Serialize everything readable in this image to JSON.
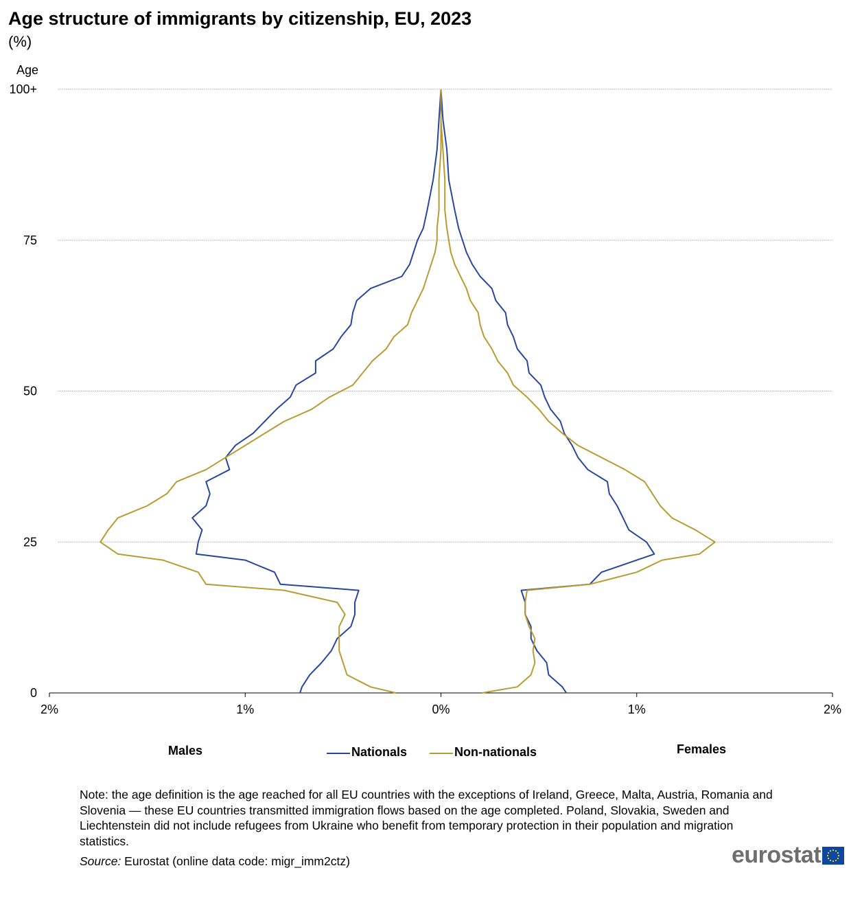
{
  "title": "Age structure of immigrants by citizenship, EU, 2023",
  "subtitle": "(%)",
  "note": "Note: the age definition is the age reached for all EU countries with the exceptions of Ireland, Greece, Malta, Austria, Romania and Slovenia — these EU countries transmitted immigration flows based on the age completed. Poland, Slovakia, Sweden and Liechtenstein did not include refugees from Ukraine who benefit from temporary protection in their population and migration statistics.",
  "source_label": "Source:",
  "source_text": " Eurostat (online data code: migr_imm2ctz)",
  "logo_text": "eurostat",
  "colors": {
    "nationals": "#2846a0",
    "non_nationals": "#b99b32",
    "grid": "#bfbfbf",
    "axis": "#000000"
  },
  "chart_data": {
    "type": "line",
    "title": "Age structure of immigrants by citizenship, EU, 2023",
    "subtitle": "(%)",
    "ylabel": "Age",
    "left_label": "Males",
    "right_label": "Females",
    "x_ticks": [
      -2,
      -1,
      0,
      1,
      2
    ],
    "x_tick_labels": [
      "2%",
      "1%",
      "0%",
      "1%",
      "2%"
    ],
    "xlim": [
      -2,
      2
    ],
    "y_ticks": [
      0,
      25,
      50,
      75,
      100
    ],
    "y_tick_labels": [
      "0",
      "25",
      "50",
      "75",
      "100+"
    ],
    "ylim": [
      0,
      100
    ],
    "grid": "horizontal",
    "legend": "bottom-center",
    "ages": [
      0,
      1,
      3,
      5,
      7,
      9,
      11,
      13,
      15,
      17,
      18,
      20,
      22,
      23,
      25,
      27,
      29,
      31,
      33,
      35,
      37,
      39,
      41,
      43,
      45,
      47,
      49,
      51,
      53,
      55,
      57,
      59,
      61,
      63,
      65,
      67,
      69,
      71,
      73,
      75,
      77,
      80,
      85,
      90,
      95,
      100
    ],
    "series": [
      {
        "name": "Nationals",
        "sex": "Males",
        "values": [
          -0.72,
          -0.71,
          -0.67,
          -0.61,
          -0.56,
          -0.53,
          -0.46,
          -0.44,
          -0.44,
          -0.42,
          -0.82,
          -0.85,
          -1.0,
          -1.25,
          -1.24,
          -1.22,
          -1.27,
          -1.2,
          -1.18,
          -1.2,
          -1.08,
          -1.1,
          -1.05,
          -0.96,
          -0.9,
          -0.84,
          -0.77,
          -0.74,
          -0.64,
          -0.64,
          -0.55,
          -0.51,
          -0.46,
          -0.45,
          -0.43,
          -0.36,
          -0.2,
          -0.16,
          -0.14,
          -0.12,
          -0.09,
          -0.07,
          -0.04,
          -0.02,
          -0.01,
          0.0
        ]
      },
      {
        "name": "Nationals",
        "sex": "Females",
        "values": [
          0.64,
          0.62,
          0.55,
          0.54,
          0.49,
          0.46,
          0.46,
          0.43,
          0.43,
          0.41,
          0.76,
          0.82,
          1.0,
          1.09,
          1.05,
          0.96,
          0.93,
          0.9,
          0.86,
          0.85,
          0.75,
          0.7,
          0.67,
          0.63,
          0.61,
          0.56,
          0.53,
          0.51,
          0.45,
          0.44,
          0.39,
          0.37,
          0.34,
          0.33,
          0.28,
          0.26,
          0.2,
          0.16,
          0.13,
          0.11,
          0.09,
          0.07,
          0.04,
          0.03,
          0.01,
          0.0
        ]
      },
      {
        "name": "Non-nationals",
        "sex": "Males",
        "values": [
          -0.23,
          -0.36,
          -0.48,
          -0.5,
          -0.52,
          -0.52,
          -0.52,
          -0.49,
          -0.53,
          -0.8,
          -1.2,
          -1.24,
          -1.42,
          -1.65,
          -1.74,
          -1.7,
          -1.65,
          -1.5,
          -1.4,
          -1.35,
          -1.2,
          -1.1,
          -1.0,
          -0.9,
          -0.8,
          -0.66,
          -0.57,
          -0.45,
          -0.4,
          -0.35,
          -0.28,
          -0.24,
          -0.17,
          -0.15,
          -0.12,
          -0.09,
          -0.07,
          -0.05,
          -0.03,
          -0.02,
          -0.02,
          -0.01,
          -0.01,
          0.0,
          0.0,
          0.0
        ]
      },
      {
        "name": "Non-nationals",
        "sex": "Females",
        "values": [
          0.21,
          0.39,
          0.46,
          0.48,
          0.47,
          0.48,
          0.45,
          0.43,
          0.43,
          0.44,
          0.76,
          1.0,
          1.13,
          1.32,
          1.4,
          1.3,
          1.18,
          1.12,
          1.08,
          1.04,
          0.94,
          0.82,
          0.7,
          0.62,
          0.55,
          0.5,
          0.44,
          0.37,
          0.34,
          0.29,
          0.26,
          0.22,
          0.2,
          0.19,
          0.15,
          0.13,
          0.1,
          0.07,
          0.05,
          0.04,
          0.03,
          0.02,
          0.02,
          0.01,
          0.0,
          0.0
        ]
      }
    ]
  }
}
